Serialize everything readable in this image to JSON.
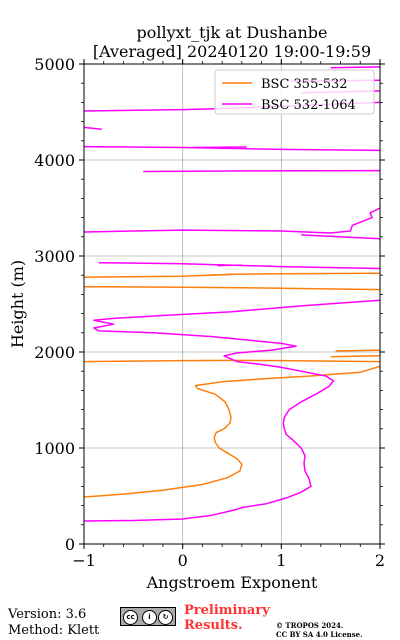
{
  "chart_data": {
    "type": "line",
    "title": [
      "pollyxt_tjk at Dushanbe",
      "[Averaged] 20240120 19:00-19:59"
    ],
    "xlabel": "Angstroem Exponent",
    "ylabel": "Height (m)",
    "xlim": [
      -1,
      2
    ],
    "ylim": [
      0,
      5000
    ],
    "xticks": [
      "−1",
      "0",
      "1",
      "2"
    ],
    "yticks": [
      "0",
      "1000",
      "2000",
      "3000",
      "4000",
      "5000"
    ],
    "grid": true,
    "legend_position": "top-right",
    "series": [
      {
        "name": "BSC 355-532",
        "color": "#ff7f0e",
        "points": [
          [
            -1.0,
            490
          ],
          [
            -0.6,
            520
          ],
          [
            -0.2,
            560
          ],
          [
            0.2,
            620
          ],
          [
            0.45,
            690
          ],
          [
            0.58,
            760
          ],
          [
            0.6,
            830
          ],
          [
            0.55,
            890
          ],
          [
            0.45,
            950
          ],
          [
            0.37,
            1000
          ],
          [
            0.33,
            1060
          ],
          [
            0.32,
            1110
          ],
          [
            0.34,
            1160
          ],
          [
            0.42,
            1200
          ],
          [
            0.48,
            1260
          ],
          [
            0.49,
            1320
          ],
          [
            0.47,
            1400
          ],
          [
            0.43,
            1480
          ],
          [
            0.33,
            1560
          ],
          [
            0.15,
            1620
          ],
          [
            0.13,
            1650
          ],
          [
            0.4,
            1690
          ],
          [
            0.8,
            1720
          ],
          [
            1.3,
            1750
          ],
          [
            1.8,
            1790
          ],
          [
            2.0,
            1850
          ],
          [
            null,
            null
          ],
          [
            -1.0,
            1900
          ],
          [
            -0.5,
            1905
          ],
          [
            0.0,
            1910
          ],
          [
            0.5,
            1912
          ],
          [
            1.0,
            1910
          ],
          [
            2.0,
            1900
          ],
          [
            null,
            null
          ],
          [
            1.5,
            1950
          ],
          [
            2.0,
            1960
          ],
          [
            null,
            null
          ],
          [
            1.55,
            2010
          ],
          [
            2.0,
            2020
          ],
          [
            null,
            null
          ],
          [
            -1.0,
            2680
          ],
          [
            0.0,
            2675
          ],
          [
            1.0,
            2665
          ],
          [
            2.0,
            2650
          ],
          [
            null,
            null
          ],
          [
            -1.0,
            2780
          ],
          [
            0.0,
            2790
          ],
          [
            0.5,
            2810
          ],
          [
            1.0,
            2815
          ],
          [
            2.0,
            2820
          ],
          [
            null,
            null
          ],
          [
            0.25,
            2800
          ],
          [
            0.55,
            2810
          ]
        ]
      },
      {
        "name": "BSC 532-1064",
        "color": "#ff00ff",
        "points": [
          [
            -1.0,
            240
          ],
          [
            -0.5,
            245
          ],
          [
            0.0,
            260
          ],
          [
            0.3,
            300
          ],
          [
            0.55,
            360
          ],
          [
            0.6,
            380
          ],
          [
            0.85,
            420
          ],
          [
            1.05,
            480
          ],
          [
            1.2,
            540
          ],
          [
            1.3,
            600
          ],
          [
            1.28,
            680
          ],
          [
            1.24,
            760
          ],
          [
            1.23,
            840
          ],
          [
            1.24,
            920
          ],
          [
            1.2,
            1000
          ],
          [
            1.12,
            1080
          ],
          [
            1.05,
            1140
          ],
          [
            1.03,
            1200
          ],
          [
            1.02,
            1260
          ],
          [
            1.03,
            1320
          ],
          [
            1.08,
            1400
          ],
          [
            1.2,
            1480
          ],
          [
            1.35,
            1560
          ],
          [
            1.48,
            1640
          ],
          [
            1.53,
            1700
          ],
          [
            1.45,
            1750
          ],
          [
            1.2,
            1800
          ],
          [
            1.0,
            1840
          ],
          [
            0.8,
            1870
          ],
          [
            0.55,
            1900
          ],
          [
            0.42,
            1960
          ],
          [
            0.55,
            1990
          ],
          [
            0.9,
            2020
          ],
          [
            1.15,
            2060
          ],
          [
            1.0,
            2090
          ],
          [
            0.6,
            2130
          ],
          [
            0.3,
            2160
          ],
          [
            -0.3,
            2200
          ],
          [
            -0.85,
            2220
          ],
          [
            -0.9,
            2250
          ],
          [
            -0.7,
            2290
          ],
          [
            -0.85,
            2320
          ],
          [
            -0.9,
            2330
          ],
          [
            -0.7,
            2350
          ],
          [
            -0.2,
            2380
          ],
          [
            0.5,
            2420
          ],
          [
            1.2,
            2480
          ],
          [
            2.0,
            2540
          ],
          [
            null,
            null
          ],
          [
            -1.0,
            3250
          ],
          [
            0.0,
            3270
          ],
          [
            1.0,
            3260
          ],
          [
            1.5,
            3240
          ],
          [
            1.7,
            3260
          ],
          [
            1.72,
            3320
          ],
          [
            1.92,
            3400
          ],
          [
            1.9,
            3450
          ],
          [
            2.0,
            3500
          ],
          [
            null,
            null
          ],
          [
            1.2,
            3220
          ],
          [
            2.0,
            3180
          ],
          [
            null,
            null
          ],
          [
            -0.85,
            2930
          ],
          [
            0.0,
            2920
          ],
          [
            1.0,
            2890
          ],
          [
            2.0,
            2870
          ],
          [
            null,
            null
          ],
          [
            0.35,
            2900
          ],
          [
            0.6,
            2905
          ],
          [
            null,
            null
          ],
          [
            -0.4,
            3880
          ],
          [
            0.5,
            3885
          ],
          [
            1.2,
            3888
          ],
          [
            2.0,
            3890
          ],
          [
            null,
            null
          ],
          [
            -1.0,
            4140
          ],
          [
            0.0,
            4130
          ],
          [
            1.0,
            4110
          ],
          [
            2.0,
            4100
          ],
          [
            null,
            null
          ],
          [
            0.1,
            4130
          ],
          [
            0.65,
            4135
          ],
          [
            null,
            null
          ],
          [
            -1.0,
            4340
          ],
          [
            -0.82,
            4320
          ],
          [
            null,
            null
          ],
          [
            -1.0,
            4510
          ],
          [
            0.0,
            4525
          ],
          [
            0.5,
            4540
          ],
          [
            1.0,
            4560
          ],
          [
            2.0,
            4600
          ],
          [
            null,
            null
          ],
          [
            1.2,
            4700
          ],
          [
            2.0,
            4720
          ],
          [
            null,
            null
          ],
          [
            1.1,
            4820
          ],
          [
            2.0,
            4830
          ],
          [
            null,
            null
          ],
          [
            1.5,
            4960
          ],
          [
            2.0,
            4970
          ]
        ]
      }
    ]
  },
  "footer": {
    "version": "Version: 3.6",
    "method": "Method: Klett",
    "preliminary": [
      "Preliminary",
      "Results."
    ],
    "copyright": [
      "© TROPOS 2024.",
      "CC BY SA 4.0 License."
    ]
  }
}
